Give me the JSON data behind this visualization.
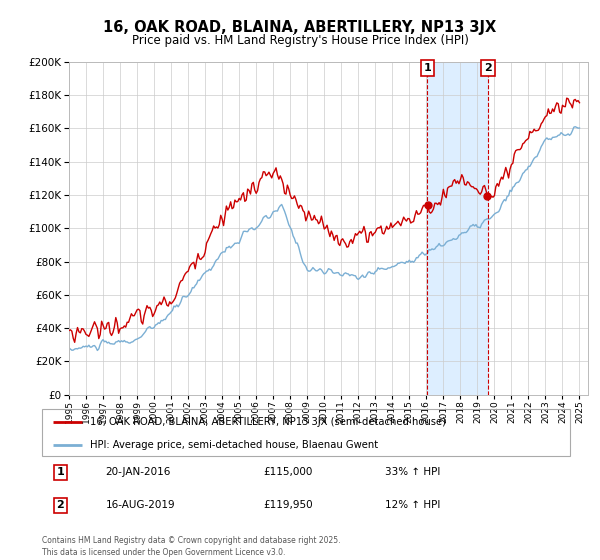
{
  "title": "16, OAK ROAD, BLAINA, ABERTILLERY, NP13 3JX",
  "subtitle": "Price paid vs. HM Land Registry's House Price Index (HPI)",
  "legend_line1": "16, OAK ROAD, BLAINA, ABERTILLERY, NP13 3JX (semi-detached house)",
  "legend_line2": "HPI: Average price, semi-detached house, Blaenau Gwent",
  "red_color": "#cc0000",
  "blue_color": "#7bafd4",
  "shaded_color": "#ddeeff",
  "marker1_date": "20-JAN-2016",
  "marker1_price": "£115,000",
  "marker1_hpi": "33% ↑ HPI",
  "marker1_year": 2016.05,
  "marker1_value": 115000,
  "marker2_date": "16-AUG-2019",
  "marker2_price": "£119,950",
  "marker2_hpi": "12% ↑ HPI",
  "marker2_year": 2019.62,
  "marker2_value": 119950,
  "footer": "Contains HM Land Registry data © Crown copyright and database right 2025.\nThis data is licensed under the Open Government Licence v3.0.",
  "ylim": [
    0,
    200000
  ],
  "xlim_start": 1995,
  "xlim_end": 2025.5
}
